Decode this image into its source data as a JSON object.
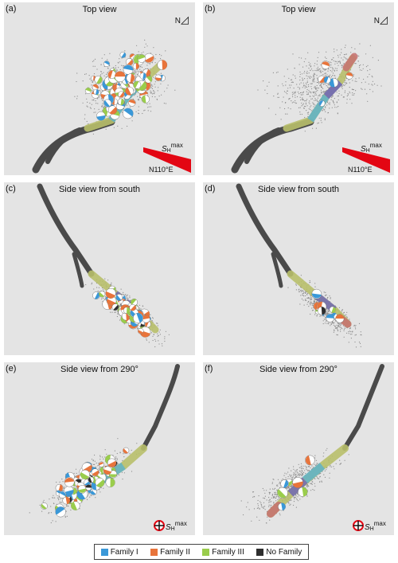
{
  "panels": [
    {
      "label": "(a)",
      "title": "Top view"
    },
    {
      "label": "(b)",
      "title": "Top view"
    },
    {
      "label": "(c)",
      "title": "Side view from south"
    },
    {
      "label": "(d)",
      "title": "Side view from south"
    },
    {
      "label": "(e)",
      "title": "Side view from 290°"
    },
    {
      "label": "(f)",
      "title": "Side view from 290°"
    }
  ],
  "north_label": "N",
  "shmax": {
    "s": "S",
    "sub": "H",
    "sup": "max",
    "azimuth": "N110°E"
  },
  "legend": [
    {
      "label": "Family I",
      "color": "#3a98d8"
    },
    {
      "label": "Family II",
      "color": "#e8743b"
    },
    {
      "label": "Family III",
      "color": "#9acd4c"
    },
    {
      "label": "No Family",
      "color": "#2e2e2e"
    }
  ],
  "colors": {
    "well": "#4a4a4a",
    "panel_bg": "#e4e4e4",
    "stress_arrow": "#e30613"
  }
}
